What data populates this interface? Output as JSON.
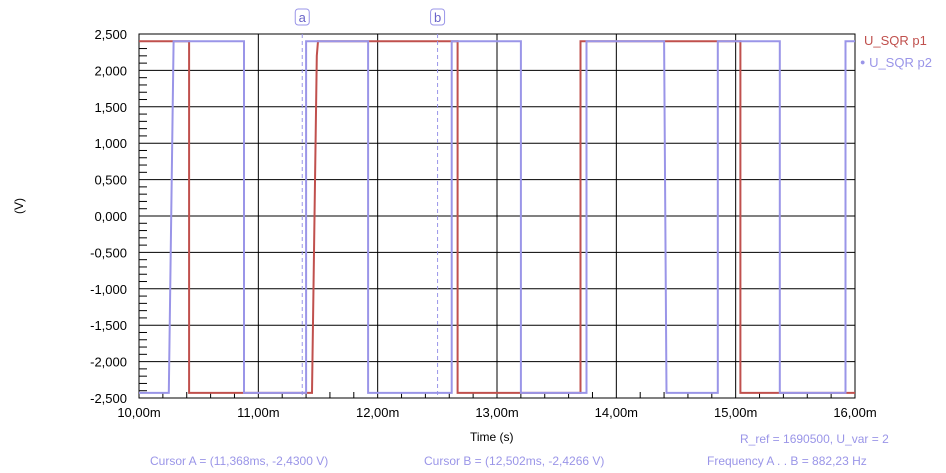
{
  "chart_data": {
    "type": "line",
    "title": "",
    "xlabel": "Time (s)",
    "ylabel": "(V)",
    "xlim": [
      10.0,
      16.0
    ],
    "ylim": [
      -2.5,
      2.5
    ],
    "x_unit": "ms",
    "x_tick_labels": [
      "10,00m",
      "11,00m",
      "12,00m",
      "13,00m",
      "14,00m",
      "15,00m",
      "16,00m"
    ],
    "x_ticks": [
      10,
      11,
      12,
      13,
      14,
      15,
      16
    ],
    "y_tick_labels": [
      "2,500",
      "2,000",
      "1,500",
      "1,000",
      "0,500",
      "0,000",
      "-0,500",
      "-1,000",
      "-1,500",
      "-2,000",
      "-2,500"
    ],
    "y_ticks": [
      2.5,
      2.0,
      1.5,
      1.0,
      0.5,
      0.0,
      -0.5,
      -1.0,
      -1.5,
      -2.0,
      -2.5
    ],
    "grid": true,
    "legend_position": "top-right",
    "series": [
      {
        "name": "U_SQR p1",
        "color": "#c0504d",
        "x": [
          10.0,
          10.42,
          10.42,
          11.45,
          11.49,
          11.5,
          12.67,
          12.67,
          13.7,
          13.7,
          14.6,
          14.6,
          15.04,
          15.04,
          16.0
        ],
        "y": [
          2.4,
          2.4,
          -2.43,
          -2.43,
          2.2,
          2.4,
          2.4,
          -2.43,
          -2.43,
          2.4,
          2.4,
          2.4,
          2.4,
          -2.43,
          -2.43
        ]
      },
      {
        "name": "U_SQR p2",
        "color": "#9a95e8",
        "x": [
          10.0,
          10.25,
          10.29,
          10.88,
          10.88,
          11.4,
          11.4,
          11.92,
          11.92,
          12.62,
          12.62,
          13.2,
          13.2,
          13.75,
          13.75,
          14.4,
          14.42,
          14.85,
          14.85,
          15.37,
          15.37,
          15.92,
          15.92,
          16.0
        ],
        "y": [
          -2.43,
          -2.43,
          2.4,
          2.4,
          -2.43,
          -2.43,
          2.4,
          2.4,
          -2.43,
          -2.43,
          2.4,
          2.4,
          -2.43,
          -2.43,
          2.4,
          2.4,
          -2.43,
          -2.43,
          2.4,
          2.4,
          -2.43,
          -2.43,
          2.4,
          2.4
        ]
      }
    ],
    "cursors": [
      {
        "label": "a",
        "x": 11.368
      },
      {
        "label": "b",
        "x": 12.502
      }
    ],
    "annotations": {
      "cursor_a": "Cursor A = (11,368ms, -2,4300 V)",
      "cursor_b": "Cursor B = (12,502ms, -2,4266 V)",
      "r_ref": "R_ref = 1690500, U_var = 2",
      "frequency": "Frequency  A . .  B = 882,23 Hz"
    }
  }
}
